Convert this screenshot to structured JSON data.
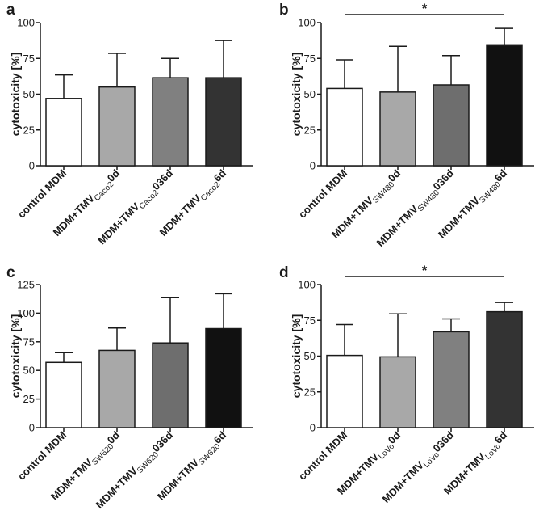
{
  "chart_data": [
    {
      "panel": "a",
      "type": "bar",
      "ylabel": "cytotoxicity [%]",
      "ylim": [
        0,
        100
      ],
      "yticks": [
        0,
        25,
        50,
        75,
        100
      ],
      "categories": [
        {
          "pre": "control MDM",
          "sub": "",
          "post": ""
        },
        {
          "pre": "MDM+TMV",
          "sub": "Caco2",
          "post": "0d"
        },
        {
          "pre": "MDM+TMV",
          "sub": "Caco2",
          "post": "036d"
        },
        {
          "pre": "MDM+TMV",
          "sub": "Caco2",
          "post": "6d"
        }
      ],
      "values": [
        47,
        55,
        61.5,
        61.5
      ],
      "errors": [
        16.5,
        23.5,
        13.5,
        26
      ],
      "colors": [
        "#ffffff",
        "#a8a8a8",
        "#808080",
        "#333333"
      ],
      "significance": []
    },
    {
      "panel": "b",
      "type": "bar",
      "ylabel": "cytotoxicity [%]",
      "ylim": [
        0,
        100
      ],
      "yticks": [
        0,
        25,
        50,
        75,
        100
      ],
      "categories": [
        {
          "pre": "control MDM",
          "sub": "",
          "post": ""
        },
        {
          "pre": "MDM+TMV",
          "sub": "SW480",
          "post": "0d"
        },
        {
          "pre": "MDM+TMV",
          "sub": "SW480",
          "post": "036d"
        },
        {
          "pre": "MDM+TMV",
          "sub": "SW480",
          "post": "6d"
        }
      ],
      "values": [
        54,
        51.5,
        56.5,
        84
      ],
      "errors": [
        20,
        32,
        20.5,
        12
      ],
      "colors": [
        "#ffffff",
        "#a8a8a8",
        "#6e6e6e",
        "#111111"
      ],
      "significance": [
        {
          "from": 0,
          "to": 3,
          "label": "*"
        }
      ]
    },
    {
      "panel": "c",
      "type": "bar",
      "ylabel": "cytotoxicity [%]",
      "ylim": [
        0,
        125
      ],
      "yticks": [
        0,
        25,
        50,
        75,
        100,
        125
      ],
      "categories": [
        {
          "pre": "control MDM",
          "sub": "",
          "post": ""
        },
        {
          "pre": "MDM+TMV",
          "sub": "SW620",
          "post": "0d"
        },
        {
          "pre": "MDM+TMV",
          "sub": "SW620",
          "post": "036d"
        },
        {
          "pre": "MDM+TMV",
          "sub": "SW620",
          "post": "6d"
        }
      ],
      "values": [
        57,
        67.5,
        74,
        86.5
      ],
      "errors": [
        8.5,
        19.5,
        39.5,
        30.5
      ],
      "colors": [
        "#ffffff",
        "#a8a8a8",
        "#6e6e6e",
        "#111111"
      ],
      "significance": []
    },
    {
      "panel": "d",
      "type": "bar",
      "ylabel": "cytotoxicity [%]",
      "ylim": [
        0,
        100
      ],
      "yticks": [
        0,
        25,
        50,
        75,
        100
      ],
      "categories": [
        {
          "pre": "control MDM",
          "sub": "",
          "post": ""
        },
        {
          "pre": "MDM+TMV",
          "sub": "LoVo",
          "post": "0d"
        },
        {
          "pre": "MDM+TMV",
          "sub": "LoVo",
          "post": "036d"
        },
        {
          "pre": "MDM+TMV",
          "sub": "LoVo",
          "post": "6d"
        }
      ],
      "values": [
        50.5,
        49.5,
        67,
        81
      ],
      "errors": [
        21.5,
        30,
        9,
        6.5
      ],
      "colors": [
        "#ffffff",
        "#a8a8a8",
        "#808080",
        "#333333"
      ],
      "significance": [
        {
          "from": 0,
          "to": 3,
          "label": "*"
        }
      ]
    }
  ]
}
